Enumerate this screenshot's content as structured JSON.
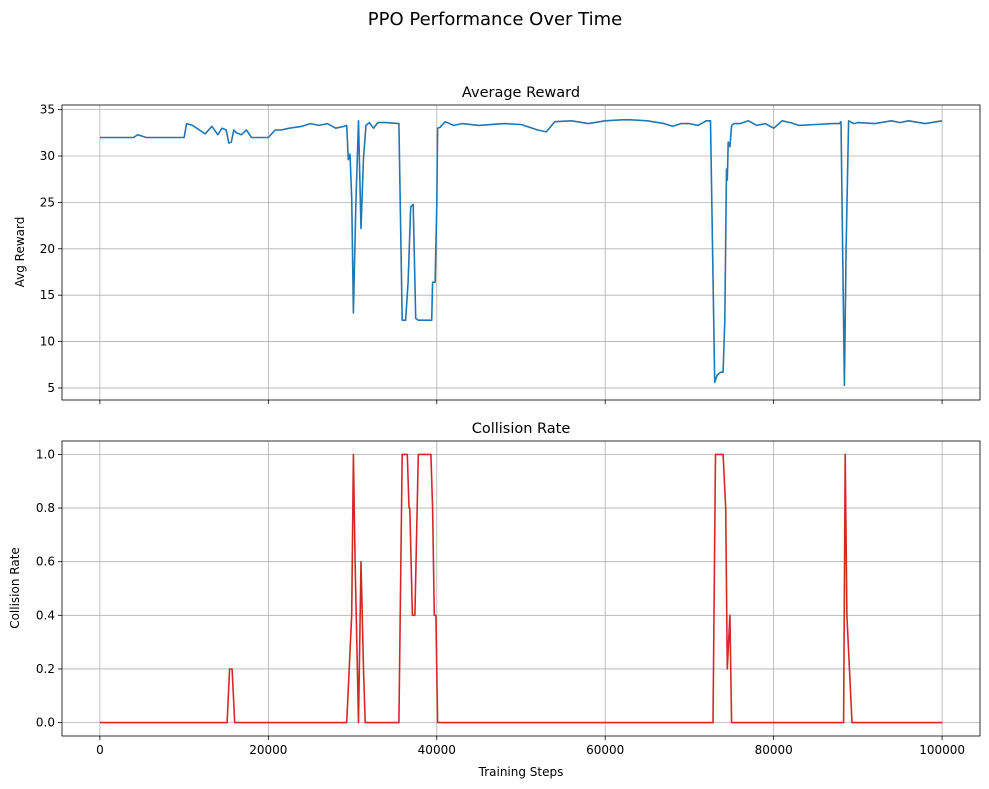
{
  "suptitle": "PPO Performance Over Time",
  "colors": {
    "reward": "#1f77b4",
    "collision": "#d62728"
  },
  "chart_data": [
    {
      "type": "line",
      "title": "Average Reward",
      "xlabel": "",
      "ylabel": "Avg Reward",
      "xlim": [
        -4500,
        104500
      ],
      "ylim": [
        3.7,
        35.5
      ],
      "xticks": [
        0,
        20000,
        40000,
        60000,
        80000,
        100000
      ],
      "xtick_labels_shown": false,
      "yticks": [
        5,
        10,
        15,
        20,
        25,
        30,
        35
      ],
      "ytick_labels": [
        "5",
        "10",
        "15",
        "20",
        "25",
        "30",
        "35"
      ],
      "grid": true,
      "series": [
        {
          "color": "#1f77b4",
          "x": [
            0,
            4000,
            4500,
            5500,
            7000,
            10000,
            10300,
            11000,
            12500,
            13300,
            14000,
            14500,
            15000,
            15300,
            15600,
            15900,
            16200,
            16800,
            17400,
            18000,
            20000,
            20800,
            21500,
            22500,
            24000,
            25000,
            26000,
            27000,
            28000,
            29000,
            29300,
            29500,
            29700,
            29900,
            30100,
            30400,
            30700,
            31000,
            31300,
            31600,
            32000,
            32500,
            33000,
            34000,
            35500,
            35900,
            36300,
            36600,
            36900,
            37200,
            37500,
            37800,
            38200,
            39400,
            39500,
            39800,
            40000,
            40100,
            40400,
            41000,
            42000,
            43000,
            45000,
            48000,
            50000,
            52000,
            53000,
            54000,
            56000,
            58000,
            60000,
            62000,
            63000,
            65000,
            67000,
            68000,
            69000,
            70000,
            71000,
            72000,
            72500,
            73000,
            73300,
            73700,
            74000,
            74200,
            74400,
            74500,
            74600,
            74800,
            75000,
            75300,
            76000,
            77000,
            78000,
            79000,
            80000,
            81000,
            82000,
            83000,
            85000,
            87000,
            87800,
            88000,
            88400,
            88600,
            88900,
            89500,
            90000,
            92000,
            94000,
            95000,
            96000,
            98000,
            100000
          ],
          "y": [
            32.0,
            32.0,
            32.3,
            32.0,
            32.0,
            32.0,
            33.5,
            33.3,
            32.4,
            33.2,
            32.3,
            33.0,
            32.8,
            31.4,
            31.5,
            32.8,
            32.5,
            32.3,
            32.8,
            32.0,
            32.0,
            32.8,
            32.8,
            33.0,
            33.2,
            33.5,
            33.3,
            33.5,
            33.0,
            33.2,
            33.3,
            29.6,
            30.2,
            25.5,
            13.1,
            25.0,
            33.8,
            22.2,
            29.8,
            33.3,
            33.6,
            33.0,
            33.6,
            33.6,
            33.5,
            12.3,
            12.3,
            16.4,
            24.5,
            24.8,
            12.5,
            12.3,
            12.3,
            12.3,
            16.4,
            16.4,
            24.8,
            33.0,
            33.1,
            33.7,
            33.3,
            33.5,
            33.3,
            33.5,
            33.4,
            32.8,
            32.6,
            33.7,
            33.8,
            33.5,
            33.8,
            33.9,
            33.9,
            33.8,
            33.5,
            33.2,
            33.5,
            33.5,
            33.3,
            33.8,
            33.8,
            5.6,
            6.4,
            6.7,
            6.7,
            12.2,
            28.6,
            27.4,
            31.5,
            31.0,
            33.3,
            33.5,
            33.5,
            33.8,
            33.3,
            33.5,
            33.0,
            33.8,
            33.6,
            33.3,
            33.4,
            33.5,
            33.5,
            33.7,
            5.3,
            20.0,
            33.8,
            33.5,
            33.6,
            33.5,
            33.8,
            33.6,
            33.8,
            33.5,
            33.8
          ]
        }
      ]
    },
    {
      "type": "line",
      "title": "Collision Rate",
      "xlabel": "Training Steps",
      "ylabel": "Collision Rate",
      "xlim": [
        -4500,
        104500
      ],
      "ylim": [
        -0.05,
        1.05
      ],
      "xticks": [
        0,
        20000,
        40000,
        60000,
        80000,
        100000
      ],
      "xtick_labels": [
        "0",
        "20000",
        "40000",
        "60000",
        "80000",
        "100000"
      ],
      "yticks": [
        0.0,
        0.2,
        0.4,
        0.6,
        0.8,
        1.0
      ],
      "ytick_labels": [
        "0.0",
        "0.2",
        "0.4",
        "0.6",
        "0.8",
        "1.0"
      ],
      "grid": true,
      "series": [
        {
          "color": "#d62728",
          "x": [
            0,
            15100,
            15400,
            15700,
            16000,
            29300,
            29600,
            29900,
            30100,
            30300,
            30700,
            31000,
            31300,
            31500,
            31700,
            35500,
            35900,
            36500,
            36700,
            36800,
            37100,
            37400,
            37800,
            39300,
            39500,
            39700,
            39900,
            40100,
            72800,
            73100,
            74000,
            74300,
            74500,
            74800,
            75000,
            88300,
            88500,
            88700,
            89300,
            100000
          ],
          "y": [
            0.0,
            0.0,
            0.2,
            0.2,
            0.0,
            0.0,
            0.2,
            0.4,
            1.0,
            0.6,
            0.0,
            0.6,
            0.2,
            0.0,
            0.0,
            0.0,
            1.0,
            1.0,
            0.8,
            0.8,
            0.4,
            0.4,
            1.0,
            1.0,
            0.8,
            0.4,
            0.4,
            0.0,
            0.0,
            1.0,
            1.0,
            0.8,
            0.2,
            0.4,
            0.0,
            0.0,
            1.0,
            0.4,
            0.0,
            0.0
          ]
        }
      ]
    }
  ]
}
